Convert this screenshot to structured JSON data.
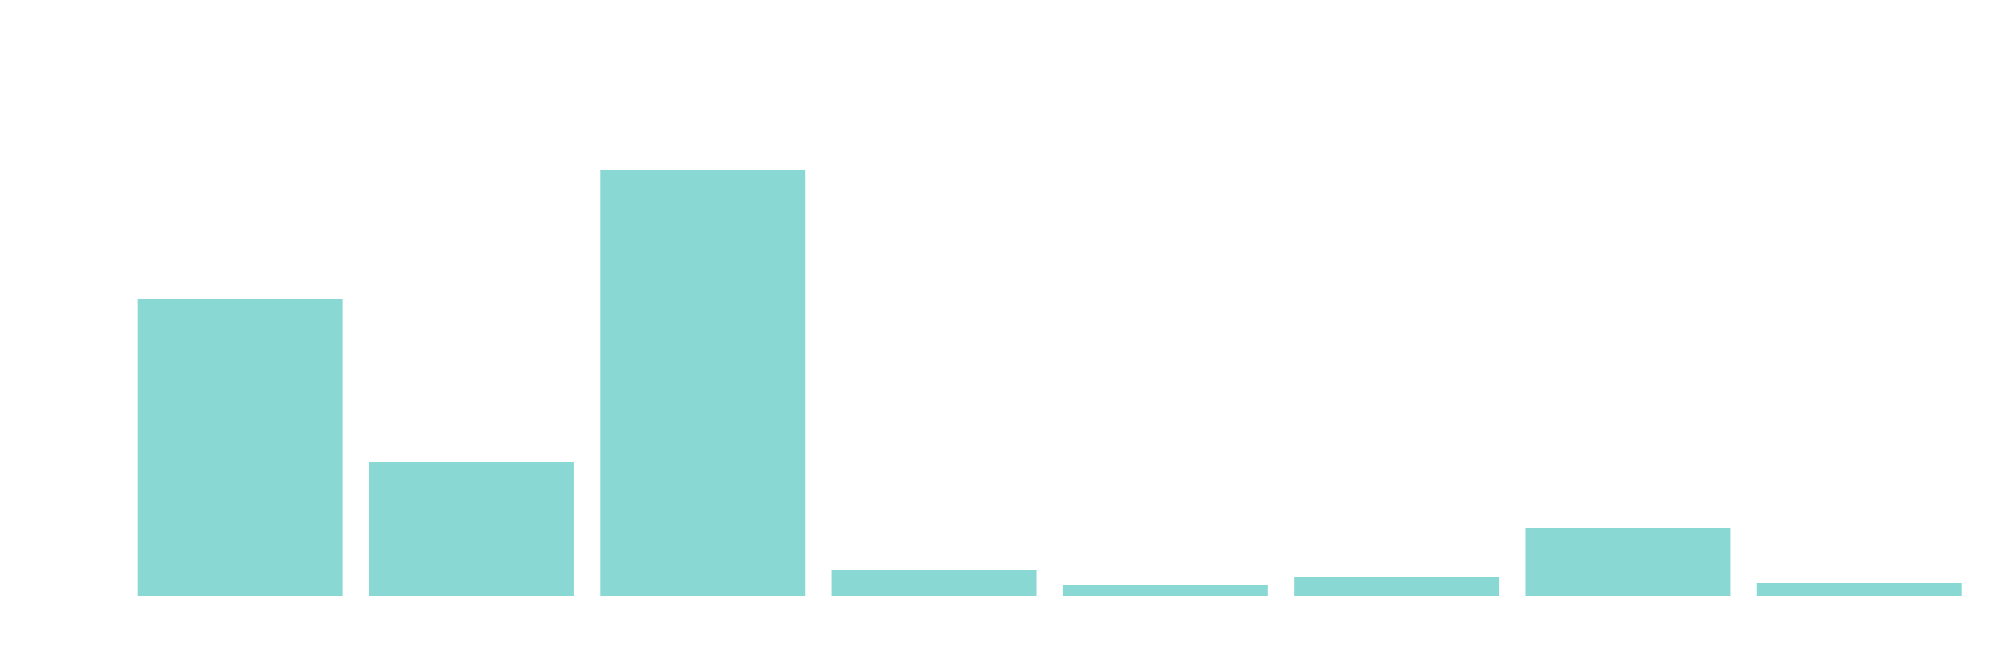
{
  "chart_data": {
    "type": "bar",
    "categories": [
      null,
      null,
      null,
      null,
      null,
      null,
      null,
      null
    ],
    "values": [
      297,
      134,
      426,
      26,
      11,
      19,
      68,
      13
    ],
    "color": "#89d8d3",
    "ylim": [
      0,
      596
    ]
  }
}
